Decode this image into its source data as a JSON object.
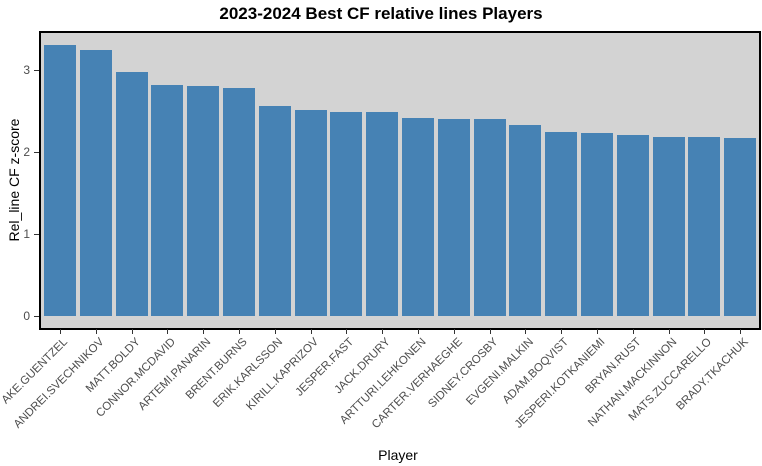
{
  "chart_data": {
    "type": "bar",
    "title": "2023-2024 Best CF relative lines Players",
    "xlabel": "Player",
    "ylabel": "Rel_line CF z-score",
    "ylim": [
      -0.15,
      3.45
    ],
    "yticks": [
      0,
      1,
      2,
      3
    ],
    "grid": false,
    "legend": null,
    "bar_color": "#4682B4",
    "panel_background": "#D3D3D3",
    "categories": [
      "AKE.GUENTZEL",
      "ANDREI.SVECHNIKOV",
      "MATT.BOLDY",
      "CONNOR.MCDAVID",
      "ARTEMI.PANARIN",
      "BRENT.BURNS",
      "ERIK.KARLSSON",
      "KIRILL.KAPRIZOV",
      "JESPER.FAST",
      "JACK.DRURY",
      "ARTTURI.LEHKONEN",
      "CARTER.VERHAEGHE",
      "SIDNEY.CROSBY",
      "EVGENI.MALKIN",
      "ADAM.BOQVIST",
      "JESPERI.KOTKANIEMI",
      "BRYAN.RUST",
      "NATHAN.MACKINNON",
      "MATS.ZUCCARELLO",
      "BRADY.TKACHUK"
    ],
    "values": [
      3.31,
      3.25,
      2.98,
      2.82,
      2.81,
      2.78,
      2.56,
      2.52,
      2.49,
      2.49,
      2.42,
      2.41,
      2.41,
      2.33,
      2.25,
      2.23,
      2.21,
      2.19,
      2.19,
      2.17
    ]
  }
}
